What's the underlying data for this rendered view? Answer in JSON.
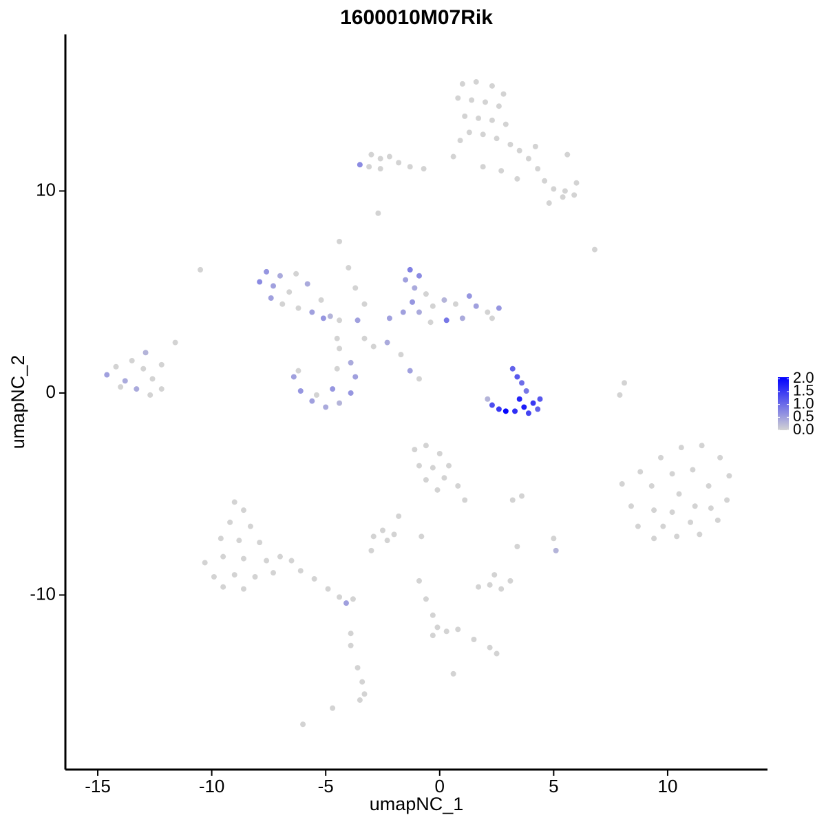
{
  "chart_data": {
    "type": "scatter",
    "title": "1600010M07Rik",
    "x_label": "umapNC_1",
    "y_label": "umapNC_2",
    "xlim": [
      -16.42,
      14.38
    ],
    "ylim": [
      -18.64,
      17.75
    ],
    "xticks": [
      -15,
      -10,
      -5,
      0,
      5,
      10
    ],
    "yticks": [
      -10,
      0,
      10
    ],
    "x": [
      1.0,
      1.6,
      2.3,
      2.8,
      0.8,
      1.4,
      2.0,
      2.6,
      1.1,
      1.7,
      2.3,
      2.9,
      1.3,
      1.9,
      2.5,
      3.1,
      0.9,
      3.5,
      3.9,
      4.3,
      4.6,
      5.0,
      5.4,
      5.9,
      6.0,
      5.5,
      4.8,
      5.6,
      4.2,
      0.6,
      1.9,
      2.7,
      3.4,
      -3.0,
      -2.6,
      -2.2,
      -1.8,
      -1.3,
      -0.7,
      -3.1,
      -2.6,
      -3.5,
      -2.7,
      -4.4,
      -4.0,
      -3.7,
      -3.3,
      6.8,
      -10.5,
      -7.6,
      -7.9,
      -7.3,
      -7.0,
      -6.6,
      -7.4,
      -6.9,
      -6.2,
      -5.8,
      -5.6,
      -5.1,
      -4.8,
      -4.4,
      -3.6,
      -6.3,
      -5.2,
      -1.3,
      -0.9,
      -1.5,
      -1.1,
      -0.6,
      -1.2,
      -1.6,
      -0.9,
      -0.3,
      0.2,
      0.7,
      1.3,
      1.6,
      2.1,
      2.6,
      2.3,
      1.0,
      0.3,
      -0.4,
      -2.2,
      -2.3,
      -1.7,
      -1.3,
      -0.9,
      -2.9,
      -3.3,
      -6.4,
      -6.1,
      -5.6,
      -5.0,
      -4.4,
      -3.9,
      -3.7,
      -3.9,
      -4.5,
      -5.4,
      -4.7,
      -6.2,
      -4.4,
      -4.5,
      -14.6,
      -14.2,
      -13.8,
      -13.5,
      -13.0,
      -12.6,
      -12.9,
      -13.3,
      -12.2,
      -14.0,
      -12.2,
      -11.6,
      -12.7,
      3.2,
      3.4,
      3.6,
      3.8,
      2.3,
      2.6,
      2.9,
      3.3,
      3.7,
      4.1,
      4.4,
      3.9,
      4.3,
      2.1,
      3.5,
      8.0,
      8.8,
      9.7,
      10.6,
      11.5,
      12.3,
      12.7,
      12.6,
      12.2,
      11.4,
      10.4,
      9.4,
      8.7,
      8.4,
      9.3,
      10.2,
      11.1,
      11.8,
      11.2,
      10.2,
      9.4,
      10.5,
      11.9,
      9.8,
      11.0,
      8.1,
      7.9,
      -9.0,
      -8.6,
      -9.2,
      -8.3,
      -9.6,
      -8.8,
      -7.9,
      -10.3,
      -9.5,
      -8.6,
      -7.6,
      -9.9,
      -9.0,
      -8.1,
      -7.3,
      -8.6,
      -9.5,
      -7.0,
      -6.5,
      -6.1,
      -5.5,
      -4.9,
      -4.4,
      -4.1,
      -3.8,
      -1.1,
      -0.6,
      0.0,
      -0.9,
      -0.3,
      0.4,
      -0.6,
      0.2,
      0.8,
      1.1,
      -0.1,
      -2.5,
      -2.0,
      -2.9,
      -2.3,
      -1.8,
      -3.0,
      1.7,
      2.2,
      2.7,
      3.1,
      2.4,
      5.0,
      5.1,
      3.6,
      3.2,
      3.4,
      -0.9,
      -0.6,
      -0.3,
      -0.1,
      -0.3,
      0.3,
      0.8,
      1.5,
      2.2,
      2.5,
      -0.8,
      -3.6,
      -3.4,
      -3.3,
      -3.5,
      -3.9,
      -3.9,
      -4.7,
      -6.0,
      0.6
    ],
    "y": [
      15.3,
      15.4,
      15.2,
      14.8,
      14.6,
      14.5,
      14.4,
      14.2,
      13.7,
      13.6,
      13.5,
      13.3,
      12.9,
      12.8,
      12.6,
      12.3,
      12.5,
      12.0,
      11.6,
      11.1,
      10.5,
      10.1,
      9.7,
      9.8,
      10.4,
      10.0,
      9.4,
      11.8,
      12.2,
      11.7,
      11.2,
      11.0,
      10.6,
      11.8,
      11.6,
      11.7,
      11.4,
      11.2,
      11.1,
      11.2,
      11.1,
      11.3,
      8.9,
      7.5,
      6.2,
      5.2,
      4.4,
      7.1,
      6.1,
      6.0,
      5.5,
      5.3,
      5.8,
      5.0,
      4.7,
      4.4,
      4.2,
      5.4,
      4.0,
      3.7,
      3.8,
      3.6,
      3.6,
      5.9,
      4.6,
      6.1,
      5.8,
      5.6,
      5.2,
      4.9,
      4.5,
      4.0,
      4.0,
      4.3,
      4.6,
      4.4,
      4.8,
      4.3,
      4.0,
      4.2,
      3.7,
      3.7,
      3.6,
      3.5,
      3.7,
      2.5,
      1.9,
      1.1,
      0.7,
      2.3,
      2.7,
      0.8,
      0.1,
      -0.4,
      -0.7,
      -0.5,
      0.0,
      0.8,
      1.5,
      1.2,
      -0.1,
      0.2,
      1.1,
      2.2,
      2.7,
      0.9,
      1.3,
      0.6,
      1.6,
      1.2,
      0.7,
      2.0,
      0.2,
      0.2,
      0.3,
      1.4,
      2.5,
      -0.1,
      1.2,
      0.8,
      0.5,
      0.1,
      -0.6,
      -0.8,
      -0.9,
      -0.9,
      -0.7,
      -0.5,
      -0.3,
      -1.0,
      -0.8,
      -0.3,
      -0.3,
      -4.5,
      -3.9,
      -3.2,
      -2.7,
      -2.6,
      -3.2,
      -4.1,
      -5.3,
      -6.3,
      -7.0,
      -7.1,
      -7.2,
      -6.6,
      -5.6,
      -4.6,
      -4.0,
      -3.8,
      -4.6,
      -5.6,
      -5.9,
      -5.8,
      -5.0,
      -5.7,
      -6.6,
      -6.4,
      0.5,
      -0.1,
      -5.4,
      -5.8,
      -6.4,
      -6.6,
      -7.2,
      -7.3,
      -7.4,
      -8.4,
      -8.1,
      -8.2,
      -8.3,
      -9.1,
      -9.0,
      -9.1,
      -8.9,
      -9.7,
      -9.6,
      -8.1,
      -8.3,
      -8.8,
      -9.2,
      -9.7,
      -10.1,
      -10.4,
      -10.2,
      -2.8,
      -2.6,
      -3.0,
      -3.6,
      -3.7,
      -3.6,
      -4.3,
      -4.2,
      -4.6,
      -5.3,
      -4.8,
      -6.8,
      -7.0,
      -7.1,
      -7.3,
      -6.1,
      -7.8,
      -9.6,
      -9.5,
      -9.7,
      -9.3,
      -9.0,
      -7.2,
      -7.8,
      -5.1,
      -5.3,
      -7.6,
      -9.3,
      -10.2,
      -11.0,
      -11.6,
      -12.0,
      -11.8,
      -11.7,
      -12.2,
      -12.6,
      -12.9,
      -7.1,
      -13.6,
      -14.3,
      -14.9,
      -15.2,
      -11.9,
      -12.5,
      -15.6,
      -16.4,
      -13.9
    ],
    "values": [
      0,
      0,
      0,
      0,
      0,
      0,
      0,
      0,
      0,
      0,
      0,
      0,
      0,
      0,
      0,
      0,
      0,
      0,
      0,
      0,
      0,
      0,
      0,
      0,
      0,
      0,
      0,
      0,
      0,
      0,
      0,
      0,
      0,
      0,
      0,
      0,
      0,
      0,
      0,
      0,
      0,
      0.7,
      0,
      0,
      0,
      0,
      0,
      0,
      0,
      0.6,
      0.7,
      0.5,
      0.4,
      0,
      0.5,
      0,
      0,
      0.4,
      0.5,
      0.6,
      0.3,
      0,
      0.5,
      0,
      0,
      0.8,
      0.7,
      0.5,
      0.4,
      0,
      0.6,
      0.5,
      0.4,
      0,
      0.3,
      0,
      0.6,
      0.5,
      0,
      0.6,
      0,
      0.4,
      0.9,
      0,
      0.5,
      0.4,
      0,
      0.5,
      0,
      0,
      0,
      0.5,
      0.6,
      0.5,
      0.4,
      0.3,
      0.6,
      0.5,
      0.4,
      0,
      0,
      0.6,
      0,
      0,
      0,
      0.5,
      0,
      0.4,
      0,
      0,
      0,
      0.3,
      0.4,
      0,
      0,
      0,
      0,
      0,
      1.1,
      1.2,
      1.0,
      0.9,
      1.3,
      1.5,
      2.0,
      1.6,
      1.8,
      1.5,
      1.2,
      1.4,
      1.1,
      0.3,
      1.7,
      0,
      0,
      0,
      0,
      0,
      0,
      0,
      0,
      0,
      0,
      0,
      0,
      0,
      0,
      0,
      0,
      0,
      0,
      0,
      0,
      0,
      0,
      0,
      0,
      0,
      0,
      0,
      0,
      0,
      0,
      0,
      0,
      0,
      0,
      0,
      0,
      0,
      0,
      0,
      0,
      0,
      0,
      0,
      0,
      0,
      0,
      0,
      0,
      0,
      0,
      0.5,
      0,
      0,
      0,
      0,
      0,
      0,
      0,
      0,
      0,
      0,
      0,
      0,
      0,
      0,
      0,
      0,
      0,
      0,
      0,
      0,
      0,
      0,
      0,
      0,
      0.3,
      0,
      0,
      0,
      0,
      0,
      0,
      0,
      0,
      0,
      0,
      0,
      0,
      0,
      0,
      0,
      0,
      0,
      0,
      0,
      0,
      0,
      0,
      0
    ],
    "colorbar": {
      "colors": [
        "#d3d3d3",
        "#0000ff"
      ],
      "lim": [
        0,
        2.06
      ],
      "ticks": [
        {
          "value": 0,
          "label": "0.0"
        },
        {
          "value": 0.5,
          "label": "0.5"
        },
        {
          "value": 1,
          "label": "1.0"
        },
        {
          "value": 1.5,
          "label": "1.5"
        },
        {
          "value": 2,
          "label": "2.0"
        }
      ]
    }
  }
}
